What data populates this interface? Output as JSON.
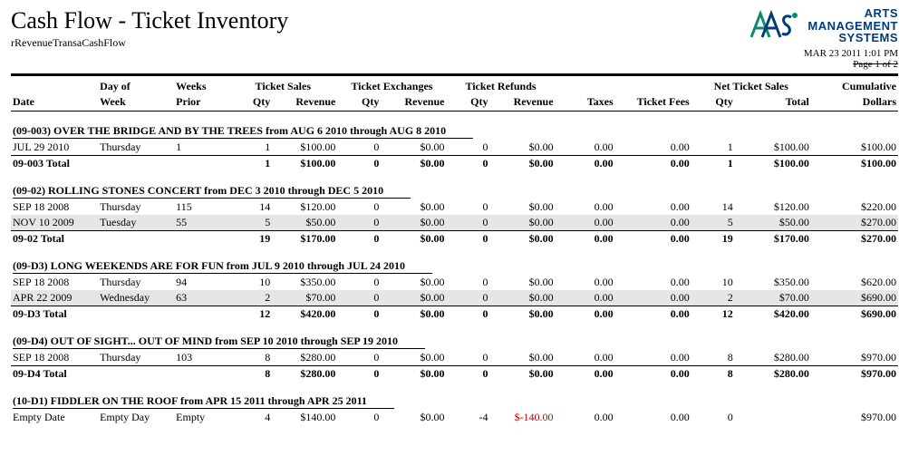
{
  "report": {
    "title": "Cash Flow - Ticket Inventory",
    "subtitle": "rRevenueTransaCashFlow",
    "timestamp": "MAR 23 2011 1:01 PM",
    "page_label": "Page 1 of 2"
  },
  "logo": {
    "line1": "ARTS",
    "line2": "MANAGEMENT",
    "line3": "SYSTEMS"
  },
  "columns": {
    "date": "Date",
    "day_of_week_l1": "Day of",
    "day_of_week_l2": "Week",
    "weeks_prior_l1": "Weeks",
    "weeks_prior_l2": "Prior",
    "ticket_sales": "Ticket Sales",
    "ticket_exchanges": "Ticket Exchanges",
    "ticket_refunds": "Ticket Refunds",
    "qty": "Qty",
    "revenue": "Revenue",
    "taxes": "Taxes",
    "ticket_fees": "Ticket Fees",
    "net_ticket_sales": "Net Ticket Sales",
    "total": "Total",
    "cumulative_l1": "Cumulative",
    "cumulative_l2": "Dollars"
  },
  "groups": [
    {
      "header": "(09-003) OVER THE BRIDGE AND BY THE TREES from AUG 6 2010 through AUG 8 2010",
      "rows": [
        {
          "date": "JUL 29 2010",
          "dow": "Thursday",
          "wp": "1",
          "sq": "1",
          "sr": "$100.00",
          "eq": "0",
          "er": "$0.00",
          "rq": "0",
          "rr": "$0.00",
          "tax": "0.00",
          "fees": "0.00",
          "nq": "1",
          "nt": "$100.00",
          "cum": "$100.00",
          "shaded": false,
          "prelim": true
        }
      ],
      "total": {
        "label": "09-003 Total",
        "sq": "1",
        "sr": "$100.00",
        "eq": "0",
        "er": "$0.00",
        "rq": "0",
        "rr": "$0.00",
        "tax": "0.00",
        "fees": "0.00",
        "nq": "1",
        "nt": "$100.00",
        "cum": "$100.00"
      }
    },
    {
      "header": "(09-02) ROLLING STONES CONCERT from DEC 3 2010 through DEC 5 2010",
      "rows": [
        {
          "date": "SEP 18 2008",
          "dow": "Thursday",
          "wp": "115",
          "sq": "14",
          "sr": "$120.00",
          "eq": "0",
          "er": "$0.00",
          "rq": "0",
          "rr": "$0.00",
          "tax": "0.00",
          "fees": "0.00",
          "nq": "14",
          "nt": "$120.00",
          "cum": "$220.00",
          "shaded": false,
          "prelim": false
        },
        {
          "date": "NOV 10 2009",
          "dow": "Tuesday",
          "wp": "55",
          "sq": "5",
          "sr": "$50.00",
          "eq": "0",
          "er": "$0.00",
          "rq": "0",
          "rr": "$0.00",
          "tax": "0.00",
          "fees": "0.00",
          "nq": "5",
          "nt": "$50.00",
          "cum": "$270.00",
          "shaded": true,
          "prelim": false
        }
      ],
      "total": {
        "label": "09-02 Total",
        "sq": "19",
        "sr": "$170.00",
        "eq": "0",
        "er": "$0.00",
        "rq": "0",
        "rr": "$0.00",
        "tax": "0.00",
        "fees": "0.00",
        "nq": "19",
        "nt": "$170.00",
        "cum": "$270.00"
      }
    },
    {
      "header": "(09-D3) LONG WEEKENDS ARE FOR FUN from JUL 9 2010 through JUL 24 2010",
      "rows": [
        {
          "date": "SEP 18 2008",
          "dow": "Thursday",
          "wp": "94",
          "sq": "10",
          "sr": "$350.00",
          "eq": "0",
          "er": "$0.00",
          "rq": "0",
          "rr": "$0.00",
          "tax": "0.00",
          "fees": "0.00",
          "nq": "10",
          "nt": "$350.00",
          "cum": "$620.00",
          "shaded": false,
          "prelim": false
        },
        {
          "date": "APR 22 2009",
          "dow": "Wednesday",
          "wp": "63",
          "sq": "2",
          "sr": "$70.00",
          "eq": "0",
          "er": "$0.00",
          "rq": "0",
          "rr": "$0.00",
          "tax": "0.00",
          "fees": "0.00",
          "nq": "2",
          "nt": "$70.00",
          "cum": "$690.00",
          "shaded": true,
          "prelim": false
        }
      ],
      "total": {
        "label": "09-D3 Total",
        "sq": "12",
        "sr": "$420.00",
        "eq": "0",
        "er": "$0.00",
        "rq": "0",
        "rr": "$0.00",
        "tax": "0.00",
        "fees": "0.00",
        "nq": "12",
        "nt": "$420.00",
        "cum": "$690.00"
      }
    },
    {
      "header": "(09-D4) OUT OF SIGHT... OUT OF MIND from SEP 10 2010 through SEP 19 2010",
      "rows": [
        {
          "date": "SEP 18 2008",
          "dow": "Thursday",
          "wp": "103",
          "sq": "8",
          "sr": "$280.00",
          "eq": "0",
          "er": "$0.00",
          "rq": "0",
          "rr": "$0.00",
          "tax": "0.00",
          "fees": "0.00",
          "nq": "8",
          "nt": "$280.00",
          "cum": "$970.00",
          "shaded": false,
          "prelim": true
        }
      ],
      "total": {
        "label": "09-D4 Total",
        "sq": "8",
        "sr": "$280.00",
        "eq": "0",
        "er": "$0.00",
        "rq": "0",
        "rr": "$0.00",
        "tax": "0.00",
        "fees": "0.00",
        "nq": "8",
        "nt": "$280.00",
        "cum": "$970.00"
      }
    },
    {
      "header": "(10-D1) FIDDLER ON THE ROOF from APR 15 2011 through APR 25 2011",
      "rows": [
        {
          "date": "Empty Date",
          "dow": "Empty Day",
          "wp": "Empty",
          "sq": "4",
          "sr": "$140.00",
          "eq": "0",
          "er": "$0.00",
          "rq": "-4",
          "rr": "$-140.00",
          "rr_neg": true,
          "tax": "0.00",
          "fees": "0.00",
          "nq": "0",
          "nt": "",
          "cum": "$970.00",
          "shaded": false,
          "prelim": false
        }
      ],
      "total": null
    }
  ],
  "col_widths": [
    "80",
    "70",
    "50",
    "40",
    "60",
    "40",
    "60",
    "40",
    "60",
    "55",
    "70",
    "40",
    "70",
    "80"
  ]
}
